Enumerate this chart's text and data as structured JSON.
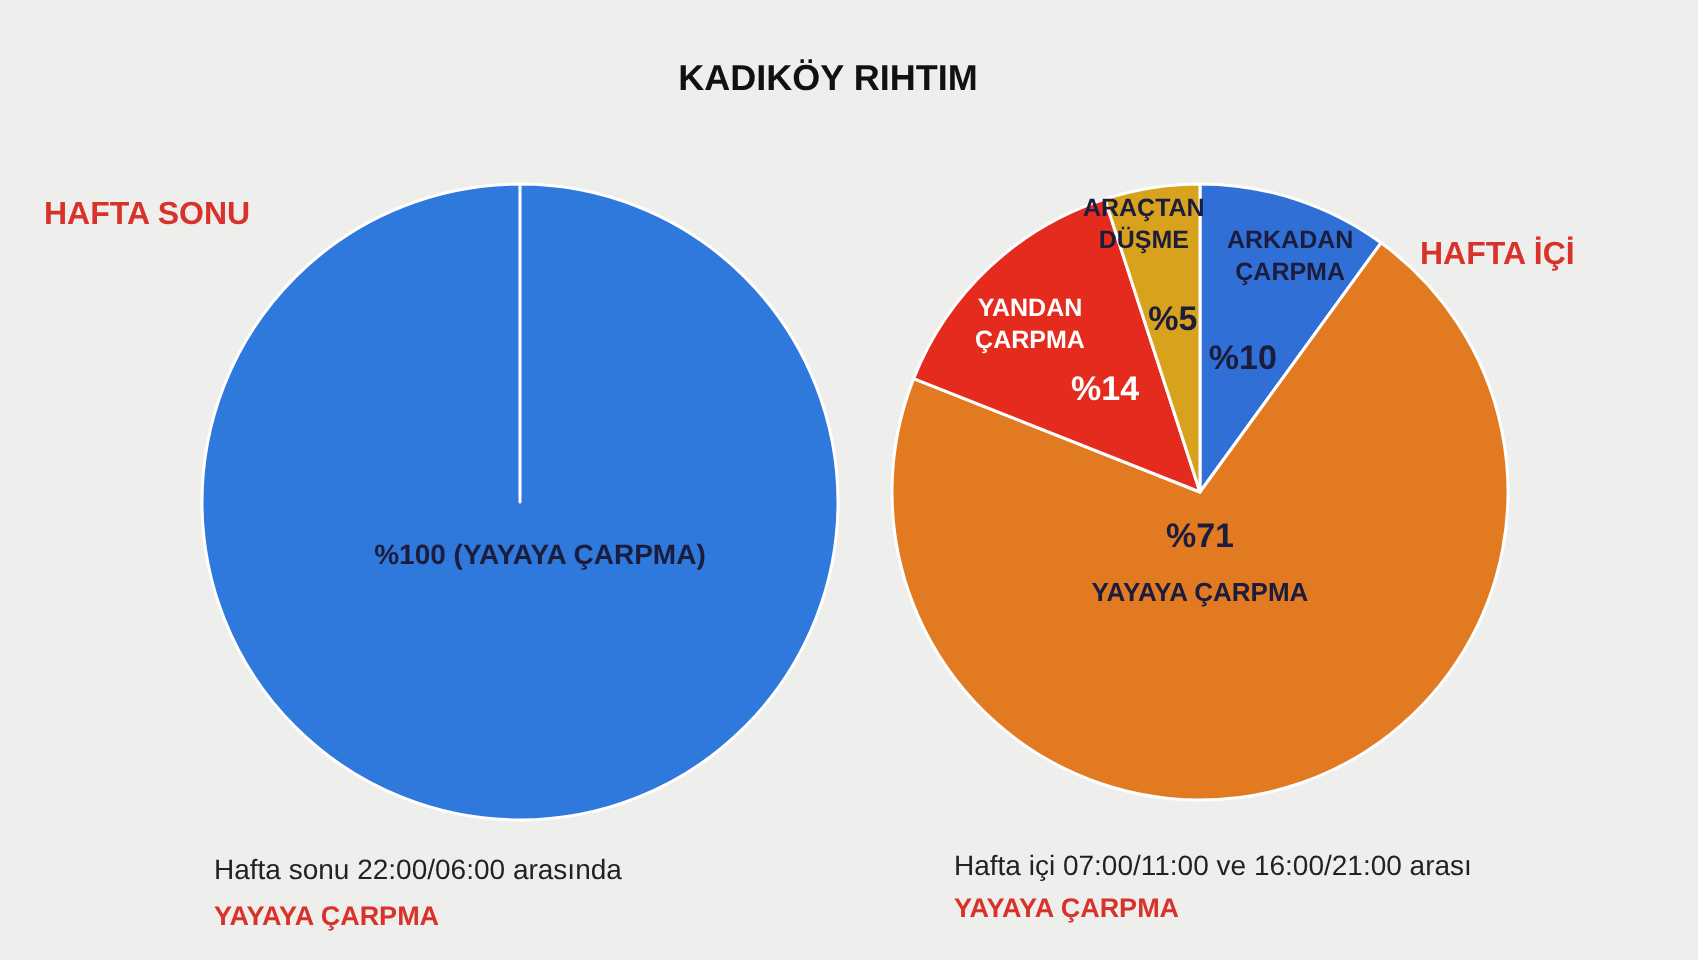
{
  "chart_data": [
    {
      "type": "other",
      "title": "KADIKÖY RIHTIM"
    },
    {
      "type": "pie",
      "title": "HAFTA SONU",
      "categories": [
        "(YAYAYA ÇARPMA)"
      ],
      "values": [
        100
      ],
      "colors": [
        "#2f78dc"
      ],
      "value_labels": [
        "%100"
      ],
      "annotations": [
        "Hafta sonu 22:00/06:00 arasında",
        "YAYAYA ÇARPMA"
      ]
    },
    {
      "type": "pie",
      "title": "HAFTA İÇİ",
      "categories": [
        "ARKADAN ÇARPMA",
        "YAYAYA ÇARPMA",
        "YANDAN ÇARPMA",
        "ARAÇTAN DÜŞME"
      ],
      "values": [
        10,
        71,
        14,
        5
      ],
      "colors": [
        "#2f6fd6",
        "#e27a22",
        "#e52a1e",
        "#d9a21c"
      ],
      "value_labels": [
        "%10",
        "%71",
        "%14",
        "%5"
      ],
      "annotations": [
        "Hafta içi 07:00/11:00 ve 16:00/21:00 arası",
        "YAYAYA ÇARPMA"
      ]
    }
  ]
}
